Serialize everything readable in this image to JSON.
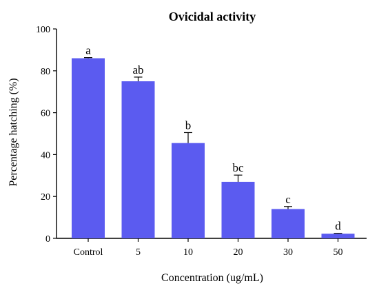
{
  "chart_data": {
    "type": "bar",
    "title": "Ovicidal activity",
    "xlabel": "Concentration (ug/mL)",
    "ylabel": "Percentage hatching (%)",
    "ylim": [
      0,
      100
    ],
    "yticks": [
      "0",
      "20",
      "40",
      "60",
      "80",
      "100"
    ],
    "categories": [
      "Control",
      "5",
      "10",
      "20",
      "30",
      "50"
    ],
    "values": [
      86,
      75,
      45.5,
      27,
      14,
      2.2
    ],
    "errors": [
      0.3,
      2,
      5,
      3.2,
      1.2,
      0.2
    ],
    "significance_labels": [
      "a",
      "ab",
      "b",
      "bc",
      "c",
      "d"
    ],
    "grid": false,
    "colors": {
      "bar": "#5b5bf0",
      "axis": "#000000"
    }
  }
}
